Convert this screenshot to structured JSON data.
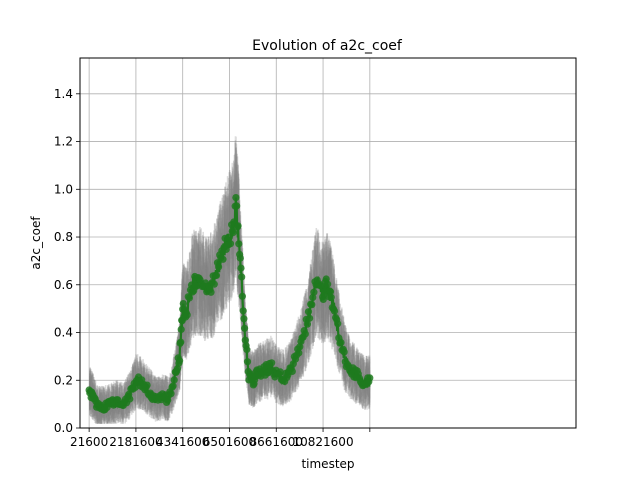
{
  "chart_data": {
    "type": "line",
    "title": "Evolution of a2c_coef",
    "xlabel": "timestep",
    "ylabel": "a2c_coef",
    "xlim": [
      -400000,
      22500000
    ],
    "ylim": [
      0.0,
      1.55
    ],
    "grid": true,
    "x_ticks": [
      21600,
      2181600,
      4341600,
      6501600,
      8661600,
      10821600,
      12981600
    ],
    "x_tick_labels": [
      "21600",
      "2181600",
      "4341600",
      "6501600",
      "8661600",
      "10821600",
      ""
    ],
    "y_ticks": [
      0.0,
      0.2,
      0.4,
      0.6,
      0.8,
      1.0,
      1.2,
      1.4
    ],
    "y_tick_labels": [
      "0.0",
      "0.2",
      "0.4",
      "0.6",
      "0.8",
      "1.0",
      "1.2",
      "1.4"
    ],
    "mean_color": "#1f7a1f",
    "trace_color": "#808080",
    "series": [
      {
        "x": [
          21600,
          200000,
          400000,
          700000,
          1000000,
          1300000,
          1600000,
          1900000,
          2200000,
          2500000,
          2800000,
          3100000,
          3400000,
          3700000,
          4000000,
          4200000,
          4341600,
          4500000,
          4800000,
          5100000,
          5400000,
          5700000,
          6000000,
          6300000,
          6600000,
          6800000,
          7000000,
          7200000,
          7400000,
          7600000,
          7800000,
          8100000,
          8400000,
          8700000,
          9000000,
          9300000,
          9600000,
          9900000,
          10200000,
          10500000,
          10800000,
          11000000,
          11200000,
          11500000,
          11800000,
          12100000,
          12400000,
          12700000,
          12981600
        ],
        "y": [
          0.16,
          0.13,
          0.09,
          0.09,
          0.1,
          0.11,
          0.1,
          0.14,
          0.2,
          0.18,
          0.15,
          0.12,
          0.13,
          0.12,
          0.22,
          0.3,
          0.5,
          0.48,
          0.6,
          0.62,
          0.58,
          0.6,
          0.68,
          0.76,
          0.82,
          0.93,
          0.7,
          0.4,
          0.22,
          0.2,
          0.23,
          0.24,
          0.26,
          0.22,
          0.21,
          0.24,
          0.3,
          0.38,
          0.48,
          0.62,
          0.56,
          0.6,
          0.55,
          0.42,
          0.3,
          0.24,
          0.22,
          0.19,
          0.19
        ]
      }
    ]
  }
}
